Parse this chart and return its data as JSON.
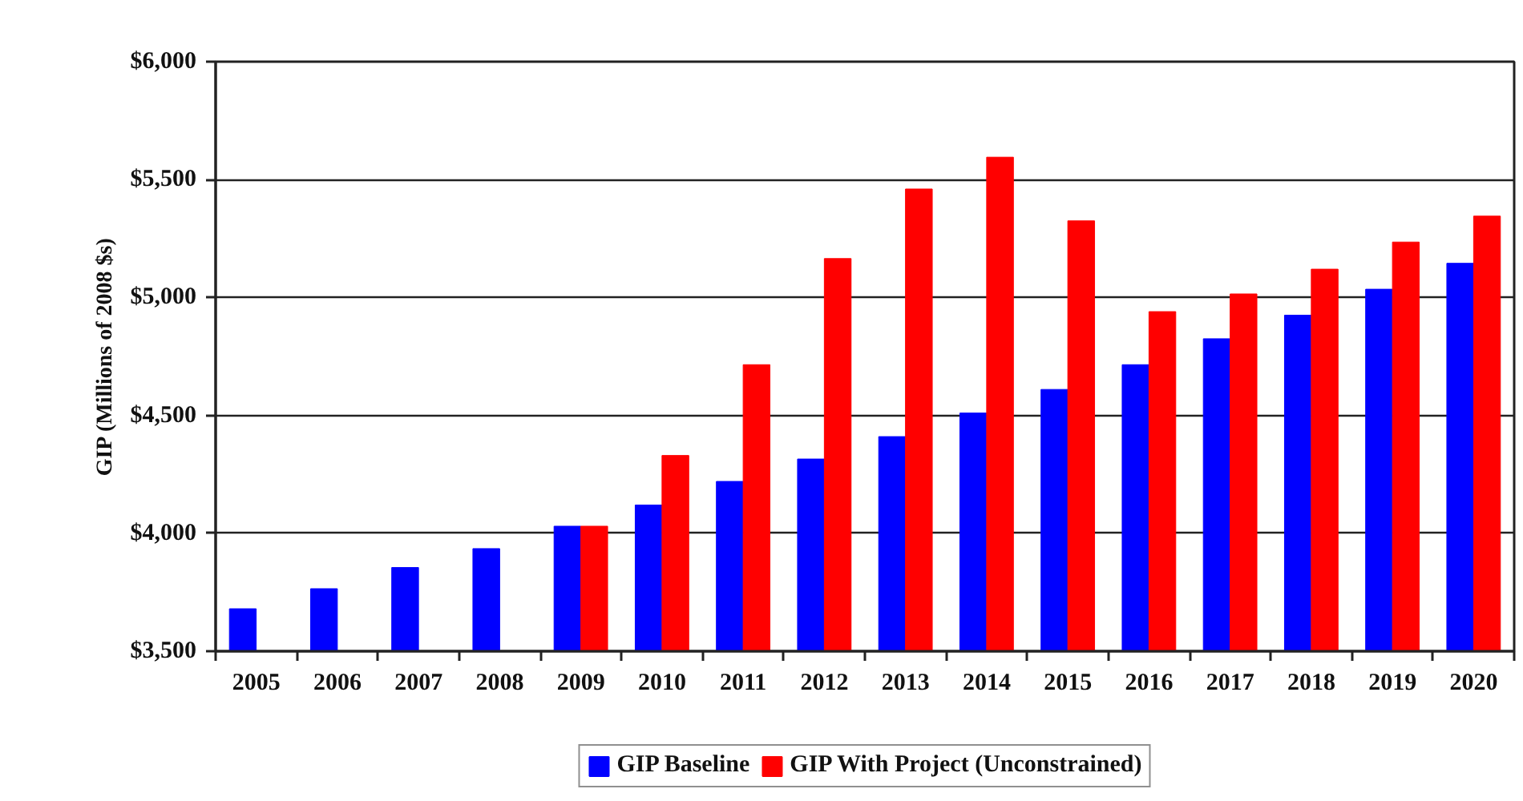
{
  "chart_data": {
    "type": "bar",
    "ylabel": "GIP (Millions of 2008 $s)",
    "categories": [
      "2005",
      "2006",
      "2007",
      "2008",
      "2009",
      "2010",
      "2011",
      "2012",
      "2013",
      "2014",
      "2015",
      "2016",
      "2017",
      "2018",
      "2019",
      "2020"
    ],
    "series": [
      {
        "name": "GIP Baseline",
        "color": "#0000ff",
        "values": [
          3680,
          3765,
          3855,
          3935,
          4030,
          4120,
          4220,
          4315,
          4410,
          4510,
          4610,
          4715,
          4825,
          4925,
          5035,
          5145
        ]
      },
      {
        "name": "GIP With Project (Unconstrained)",
        "color": "#ff0000",
        "values": [
          null,
          null,
          null,
          null,
          4030,
          4330,
          4715,
          5165,
          5460,
          5595,
          5325,
          4940,
          5015,
          5120,
          5235,
          5345
        ]
      }
    ],
    "ylim": [
      3500,
      6000
    ],
    "yticks": [
      {
        "value": 3500,
        "label": "$3,500"
      },
      {
        "value": 4000,
        "label": "$4,000"
      },
      {
        "value": 4500,
        "label": "$4,500"
      },
      {
        "value": 5000,
        "label": "$5,000"
      },
      {
        "value": 5500,
        "label": "$5,500"
      },
      {
        "value": 6000,
        "label": "$6,000"
      }
    ],
    "grid": "y",
    "legend": "bottom"
  }
}
